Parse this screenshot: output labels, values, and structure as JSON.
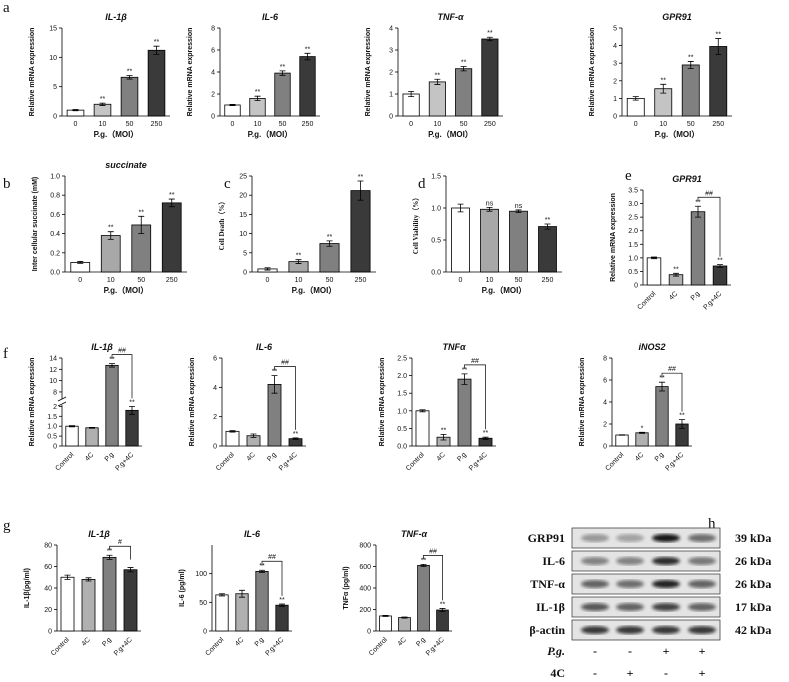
{
  "chart_data": [
    {
      "type": "bar",
      "panel_label": "a",
      "title": "IL-1β",
      "ylabel": "Relative mRNA expression",
      "xlabel": "P.g.（MOI）",
      "categories": [
        "0",
        "10",
        "50",
        "250"
      ],
      "values": [
        1,
        2,
        6.6,
        11.2
      ],
      "errors": [
        0.1,
        0.2,
        0.3,
        0.7
      ],
      "annotations": [
        null,
        "**",
        "**",
        "**"
      ],
      "colors": [
        "#ffffff",
        "#c4c4c4",
        "#808080",
        "#3a3a3a"
      ],
      "ylim": [
        0,
        15
      ],
      "yticks": [
        0,
        5,
        10,
        15
      ]
    },
    {
      "type": "bar",
      "title": "IL-6",
      "ylabel": "Relative mRNA expression",
      "xlabel": "P.g.（MOI）",
      "categories": [
        "0",
        "10",
        "50",
        "250"
      ],
      "values": [
        1,
        1.6,
        3.9,
        5.4
      ],
      "errors": [
        0.05,
        0.2,
        0.2,
        0.3
      ],
      "annotations": [
        null,
        "**",
        "**",
        "**"
      ],
      "colors": [
        "#ffffff",
        "#c4c4c4",
        "#808080",
        "#3a3a3a"
      ],
      "ylim": [
        0,
        8
      ],
      "yticks": [
        0,
        2,
        4,
        6,
        8
      ]
    },
    {
      "type": "bar",
      "title": "TNF-α",
      "ylabel": "Relative mRNA expression",
      "xlabel": "P.g.（MOI）",
      "categories": [
        "0",
        "10",
        "50",
        "250"
      ],
      "values": [
        1,
        1.55,
        2.15,
        3.5
      ],
      "errors": [
        0.12,
        0.12,
        0.1,
        0.08
      ],
      "annotations": [
        null,
        "**",
        "**",
        "**"
      ],
      "colors": [
        "#ffffff",
        "#c4c4c4",
        "#808080",
        "#3a3a3a"
      ],
      "ylim": [
        0,
        4
      ],
      "yticks": [
        0,
        1,
        2,
        3,
        4
      ]
    },
    {
      "type": "bar",
      "title": "GPR91",
      "ylabel": "Relative mRNA expression",
      "xlabel": "P.g.（MOI）",
      "categories": [
        "0",
        "10",
        "50",
        "250"
      ],
      "values": [
        1,
        1.55,
        2.9,
        3.95
      ],
      "errors": [
        0.1,
        0.25,
        0.2,
        0.45
      ],
      "annotations": [
        null,
        "**",
        "**",
        "**"
      ],
      "colors": [
        "#ffffff",
        "#c4c4c4",
        "#808080",
        "#3a3a3a"
      ],
      "ylim": [
        0,
        5
      ],
      "yticks": [
        0,
        1,
        2,
        3,
        4,
        5
      ]
    },
    {
      "type": "bar",
      "panel_label": "b",
      "title": "succinate",
      "ylabel": "Inter cellular succinate (mM)",
      "xlabel": "P.g.（MOI）",
      "categories": [
        "0",
        "10",
        "50",
        "250"
      ],
      "values": [
        0.1,
        0.38,
        0.49,
        0.72
      ],
      "errors": [
        0.01,
        0.04,
        0.09,
        0.04
      ],
      "annotations": [
        null,
        "**",
        "**",
        "**"
      ],
      "colors": [
        "#ffffff",
        "#a8a8a8",
        "#808080",
        "#3a3a3a"
      ],
      "ylim": [
        0,
        1
      ],
      "yticks": [
        {
          "value": 0,
          "label": "0.0"
        },
        0.2,
        0.4,
        0.6,
        0.8,
        {
          "value": 1,
          "label": "1.0"
        }
      ]
    },
    {
      "type": "bar",
      "panel_label": "c",
      "ylabel": "Cell Death（%）",
      "xlabel": "P.g.（MOI）",
      "categories": [
        "0",
        "10",
        "50",
        "250"
      ],
      "values": [
        0.8,
        2.7,
        7.4,
        21.2
      ],
      "errors": [
        0.3,
        0.5,
        0.7,
        2.5
      ],
      "annotations": [
        null,
        "**",
        "**",
        "**"
      ],
      "colors": [
        "#ffffff",
        "#a8a8a8",
        "#808080",
        "#3a3a3a"
      ],
      "ylim": [
        0,
        25
      ],
      "yticks": [
        0,
        5,
        10,
        15,
        20,
        25
      ]
    },
    {
      "type": "bar",
      "panel_label": "d",
      "ylabel": "Cell Viability（%）",
      "xlabel": "P.g.（MOI）",
      "categories": [
        "0",
        "10",
        "50",
        "250"
      ],
      "values": [
        1,
        0.98,
        0.95,
        0.71
      ],
      "errors": [
        0.06,
        0.03,
        0.02,
        0.04
      ],
      "annotations": [
        null,
        "ns",
        "ns",
        "**"
      ],
      "colors": [
        "#ffffff",
        "#a8a8a8",
        "#808080",
        "#3a3a3a"
      ],
      "ylim": [
        0,
        1.5
      ],
      "yticks": [
        {
          "value": 0,
          "label": "0.0"
        },
        0.5,
        {
          "value": 1,
          "label": "1.0"
        },
        1.5
      ]
    },
    {
      "type": "bar",
      "panel_label": "e",
      "title": "GPR91",
      "ylabel": "Relative mRNA expression",
      "categories": [
        "Control",
        "4C",
        "P.g",
        "P.g+4C"
      ],
      "values": [
        1,
        0.38,
        2.7,
        0.7
      ],
      "errors": [
        0.03,
        0.05,
        0.2,
        0.05
      ],
      "annotations": [
        null,
        "**",
        "**",
        "**"
      ],
      "bracket": "##",
      "colors": [
        "#ffffff",
        "#b0b0b0",
        "#808080",
        "#3a3a3a"
      ],
      "ylim": [
        0,
        3.5
      ],
      "yticks": [
        0,
        0.5,
        {
          "value": 1,
          "label": "1.0"
        },
        1.5,
        {
          "value": 2,
          "label": "2.0"
        },
        2.5,
        {
          "value": 3,
          "label": "3.0"
        },
        3.5
      ]
    },
    {
      "type": "bar",
      "panel_label": "f",
      "title": "IL-1β",
      "ylabel": "Relative mRNA expression",
      "categories": [
        "Control",
        "4C",
        "P.g",
        "P.g+4C"
      ],
      "values": [
        1,
        0.92,
        12.7,
        1.8
      ],
      "errors": [
        0.03,
        0.02,
        0.3,
        0.2
      ],
      "annotations": [
        null,
        null,
        "**",
        "**"
      ],
      "bracket": "##",
      "colors": [
        "#ffffff",
        "#b0b0b0",
        "#808080",
        "#3a3a3a"
      ],
      "ylim": [
        0,
        14
      ],
      "ybreak": [
        2,
        7
      ],
      "yticks": [
        0,
        0.5,
        {
          "value": 1,
          "label": "1.0"
        },
        1.5,
        2,
        8,
        10,
        12,
        14
      ]
    },
    {
      "type": "bar",
      "title": "IL-6",
      "ylabel": "Relative mRNA expression",
      "categories": [
        "Control",
        "4C",
        "P.g",
        "P.g+4C"
      ],
      "values": [
        1,
        0.7,
        4.2,
        0.5
      ],
      "errors": [
        0.05,
        0.12,
        0.6,
        0.05
      ],
      "annotations": [
        null,
        null,
        "**",
        "**"
      ],
      "bracket": "##",
      "colors": [
        "#ffffff",
        "#b0b0b0",
        "#808080",
        "#3a3a3a"
      ],
      "ylim": [
        0,
        6
      ],
      "yticks": [
        0,
        2,
        4,
        6
      ]
    },
    {
      "type": "bar",
      "title": "TNFα",
      "ylabel": "Relative mRNA expression",
      "categories": [
        "Control",
        "4C",
        "P.g",
        "P.g+4C"
      ],
      "values": [
        1,
        0.25,
        1.9,
        0.22
      ],
      "errors": [
        0.03,
        0.08,
        0.15,
        0.03
      ],
      "annotations": [
        null,
        "**",
        "**",
        "**"
      ],
      "bracket": "##",
      "colors": [
        "#ffffff",
        "#b0b0b0",
        "#808080",
        "#3a3a3a"
      ],
      "ylim": [
        0,
        2.5
      ],
      "yticks": [
        {
          "value": 0,
          "label": "0.0"
        },
        0.5,
        {
          "value": 1,
          "label": "1.0"
        },
        1.5,
        {
          "value": 2,
          "label": "2.0"
        },
        2.5
      ]
    },
    {
      "type": "bar",
      "title": "iNOS2",
      "ylabel": "Relative mRNA expression",
      "categories": [
        "Control",
        "4C",
        "P.g",
        "P.g+4C"
      ],
      "values": [
        1,
        1.2,
        5.4,
        2
      ],
      "errors": [
        0.02,
        0.05,
        0.4,
        0.4
      ],
      "annotations": [
        null,
        "*",
        "**",
        "**"
      ],
      "bracket": "##",
      "colors": [
        "#ffffff",
        "#b0b0b0",
        "#808080",
        "#3a3a3a"
      ],
      "ylim": [
        0,
        8
      ],
      "yticks": [
        0,
        2,
        4,
        6,
        8
      ]
    },
    {
      "type": "bar",
      "panel_label": "g",
      "title": "IL-1β",
      "ylabel": "IL-1β(pg/ml)",
      "categories": [
        "Control",
        "4C",
        "P.g",
        "P.g+4C"
      ],
      "values": [
        50,
        48,
        68.5,
        57
      ],
      "errors": [
        2,
        1.5,
        2,
        2
      ],
      "annotations": [
        null,
        null,
        "**",
        null
      ],
      "bracket": "#",
      "colors": [
        "#ffffff",
        "#b0b0b0",
        "#808080",
        "#3a3a3a"
      ],
      "ylim": [
        0,
        80
      ],
      "yticks": [
        0,
        20,
        40,
        60,
        80
      ]
    },
    {
      "type": "bar",
      "title": "IL-6",
      "ylabel": "IL-6 (pg/ml)",
      "categories": [
        "Control",
        "4C",
        "P.g",
        "P.g+4C"
      ],
      "values": [
        63,
        65,
        104,
        45
      ],
      "errors": [
        2,
        6,
        2,
        2
      ],
      "annotations": [
        null,
        null,
        "**",
        "**"
      ],
      "bracket": "##",
      "colors": [
        "#ffffff",
        "#b0b0b0",
        "#808080",
        "#3a3a3a"
      ],
      "ylim": [
        0,
        150
      ],
      "yticks": [
        0,
        50,
        100
      ]
    },
    {
      "type": "bar",
      "title": "TNF-α",
      "ylabel": "TNFα (pg/ml)",
      "categories": [
        "Control",
        "4C",
        "P.g",
        "P.g+4C"
      ],
      "values": [
        140,
        125,
        610,
        195
      ],
      "errors": [
        5,
        5,
        10,
        15
      ],
      "annotations": [
        null,
        null,
        "**",
        "**"
      ],
      "bracket": "##",
      "colors": [
        "#ffffff",
        "#b0b0b0",
        "#808080",
        "#3a3a3a"
      ],
      "ylim": [
        0,
        800
      ],
      "yticks": [
        0,
        200,
        400,
        600,
        800
      ]
    }
  ],
  "western_blot": {
    "panel_label": "h",
    "bands": [
      {
        "label": "GRP91",
        "size": "39 kDa"
      },
      {
        "label": "IL-6",
        "size": "26 kDa"
      },
      {
        "label": "TNF-α",
        "size": "26 kDa"
      },
      {
        "label": "IL-1β",
        "size": "17 kDa"
      },
      {
        "label": "β-actin",
        "size": "42 kDa"
      }
    ],
    "treatments": [
      {
        "label": "P.g.",
        "signs": [
          "-",
          "-",
          "+",
          "+"
        ]
      },
      {
        "label": "4C",
        "signs": [
          "-",
          "+",
          "-",
          "+"
        ]
      }
    ]
  }
}
